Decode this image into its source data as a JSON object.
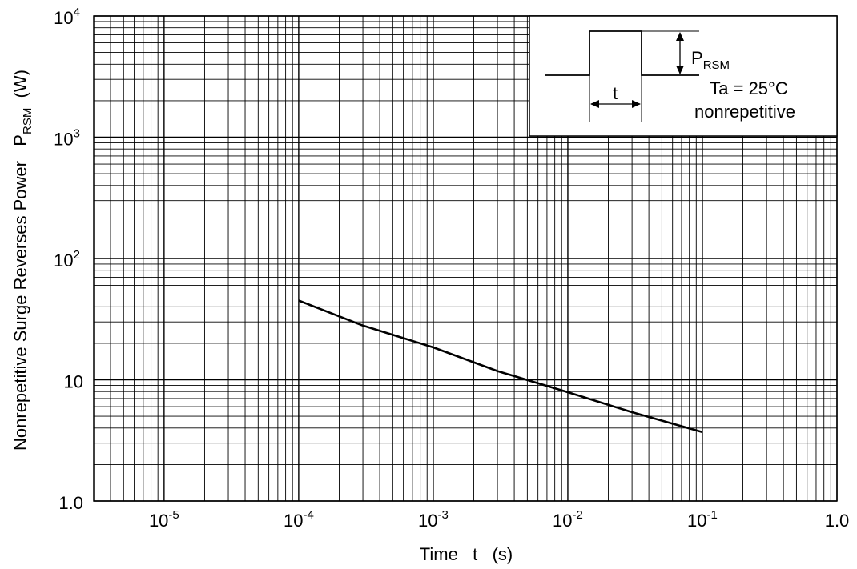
{
  "chart_data": {
    "type": "line",
    "xlabel": {
      "main": "Time   t   (s)"
    },
    "ylabel": {
      "main": "Nonrepetitive Surge Reverses Power   P",
      "sub": "RSM",
      "unit": "  (W)"
    },
    "x_scale": "log",
    "y_scale": "log",
    "xlim": [
      3e-06,
      1.0
    ],
    "ylim": [
      1.0,
      10000
    ],
    "grid": true,
    "x_ticks": [
      {
        "value": 1e-05,
        "base": "10",
        "exp": "-5"
      },
      {
        "value": 0.0001,
        "base": "10",
        "exp": "-4"
      },
      {
        "value": 0.001,
        "base": "10",
        "exp": "-3"
      },
      {
        "value": 0.01,
        "base": "10",
        "exp": "-2"
      },
      {
        "value": 0.1,
        "base": "10",
        "exp": "-1"
      },
      {
        "value": 1.0,
        "base": "1.0",
        "exp": ""
      }
    ],
    "y_ticks": [
      {
        "value": 1.0,
        "base": "1.0",
        "exp": ""
      },
      {
        "value": 10,
        "base": "10",
        "exp": ""
      },
      {
        "value": 100,
        "base": "10",
        "exp": "2"
      },
      {
        "value": 1000,
        "base": "10",
        "exp": "3"
      },
      {
        "value": 10000,
        "base": "10",
        "exp": "4"
      }
    ],
    "series": [
      {
        "x": [
          0.0001,
          0.0003,
          0.001,
          0.003,
          0.01,
          0.03,
          0.1
        ],
        "y": [
          45,
          28,
          18.5,
          11.8,
          7.9,
          5.4,
          3.7
        ]
      }
    ],
    "inset": {
      "pulse_width_label": "t",
      "amplitude_label": {
        "main": "P",
        "sub": "RSM"
      },
      "condition": "Ta = 25°C",
      "note": "nonrepetitive"
    }
  }
}
